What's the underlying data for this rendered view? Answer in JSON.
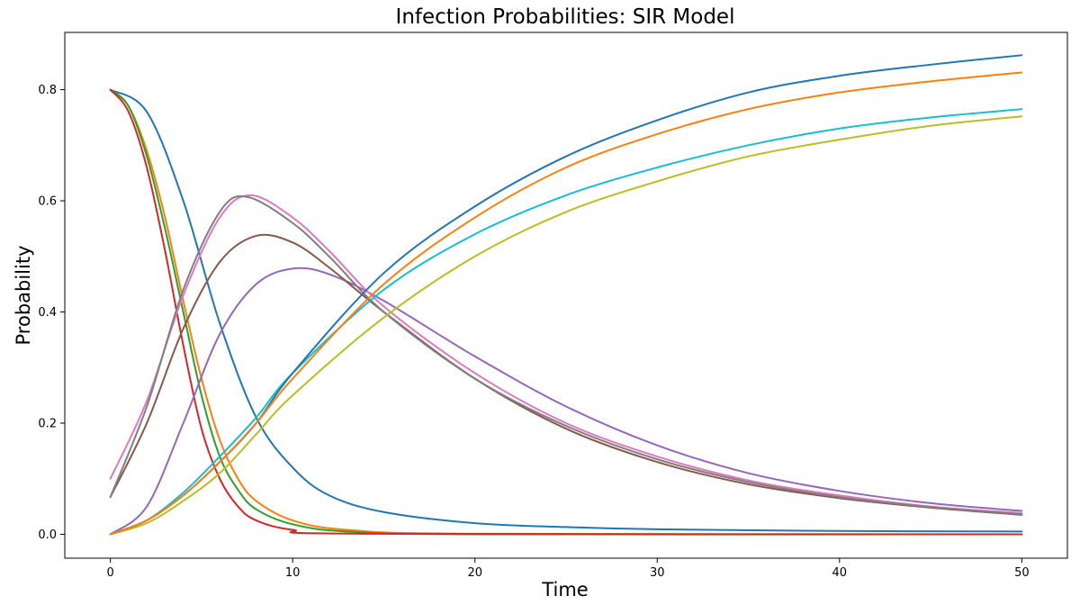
{
  "chart_data": {
    "type": "line",
    "title": "Infection Probabilities: SIR Model",
    "xlabel": "Time",
    "ylabel": "Probability",
    "xlim": [
      -2.5,
      52.5
    ],
    "ylim": [
      -0.043,
      0.903
    ],
    "xticks": [
      "0",
      "10",
      "20",
      "30",
      "40",
      "50"
    ],
    "yticks": [
      "0.0",
      "0.2",
      "0.4",
      "0.6",
      "0.8"
    ],
    "grid": false,
    "legend": "none",
    "series": [
      {
        "color": "#1f77b4",
        "points": [
          [
            0,
            0.8
          ],
          [
            2,
            0.76
          ],
          [
            4,
            0.6
          ],
          [
            6,
            0.38
          ],
          [
            8,
            0.21
          ],
          [
            10,
            0.12
          ],
          [
            12,
            0.07
          ],
          [
            15,
            0.04
          ],
          [
            20,
            0.02
          ],
          [
            25,
            0.013
          ],
          [
            30,
            0.009
          ],
          [
            40,
            0.006
          ],
          [
            50,
            0.005
          ]
        ]
      },
      {
        "color": "#ff7f0e",
        "points": [
          [
            0,
            0.8
          ],
          [
            1,
            0.77
          ],
          [
            2,
            0.69
          ],
          [
            3,
            0.57
          ],
          [
            4,
            0.42
          ],
          [
            5,
            0.28
          ],
          [
            6,
            0.17
          ],
          [
            7,
            0.1
          ],
          [
            8,
            0.06
          ],
          [
            10,
            0.025
          ],
          [
            13,
            0.008
          ],
          [
            20,
            0.001
          ],
          [
            50,
            0.0
          ]
        ]
      },
      {
        "color": "#2ca02c",
        "points": [
          [
            0,
            0.8
          ],
          [
            1,
            0.77
          ],
          [
            2,
            0.68
          ],
          [
            3,
            0.55
          ],
          [
            4,
            0.4
          ],
          [
            5,
            0.25
          ],
          [
            6,
            0.14
          ],
          [
            7,
            0.08
          ],
          [
            8,
            0.045
          ],
          [
            10,
            0.018
          ],
          [
            13,
            0.005
          ],
          [
            20,
            0.0
          ],
          [
            50,
            0.0
          ]
        ]
      },
      {
        "color": "#d62728",
        "points": [
          [
            0,
            0.8
          ],
          [
            1,
            0.76
          ],
          [
            2,
            0.66
          ],
          [
            3,
            0.51
          ],
          [
            4,
            0.34
          ],
          [
            5,
            0.19
          ],
          [
            6,
            0.1
          ],
          [
            7,
            0.05
          ],
          [
            8,
            0.025
          ],
          [
            10,
            0.008
          ],
          [
            14,
            0.001
          ],
          [
            50,
            0.0
          ]
        ]
      },
      {
        "color": "#9467bd",
        "points": [
          [
            0,
            0.0
          ],
          [
            2,
            0.05
          ],
          [
            4,
            0.2
          ],
          [
            6,
            0.36
          ],
          [
            8,
            0.45
          ],
          [
            10,
            0.478
          ],
          [
            12,
            0.468
          ],
          [
            15,
            0.42
          ],
          [
            20,
            0.32
          ],
          [
            25,
            0.23
          ],
          [
            30,
            0.16
          ],
          [
            35,
            0.11
          ],
          [
            40,
            0.078
          ],
          [
            45,
            0.056
          ],
          [
            50,
            0.042
          ]
        ]
      },
      {
        "color": "#8c564b",
        "points": [
          [
            0,
            0.067
          ],
          [
            2,
            0.2
          ],
          [
            4,
            0.37
          ],
          [
            6,
            0.49
          ],
          [
            8,
            0.537
          ],
          [
            10,
            0.525
          ],
          [
            12,
            0.48
          ],
          [
            15,
            0.4
          ],
          [
            20,
            0.28
          ],
          [
            25,
            0.19
          ],
          [
            30,
            0.13
          ],
          [
            35,
            0.09
          ],
          [
            40,
            0.065
          ],
          [
            45,
            0.048
          ],
          [
            50,
            0.035
          ]
        ]
      },
      {
        "color": "#e377c2",
        "points": [
          [
            0,
            0.1
          ],
          [
            2,
            0.24
          ],
          [
            4,
            0.43
          ],
          [
            6,
            0.57
          ],
          [
            7.7,
            0.61
          ],
          [
            10,
            0.57
          ],
          [
            12,
            0.51
          ],
          [
            15,
            0.41
          ],
          [
            20,
            0.29
          ],
          [
            25,
            0.2
          ],
          [
            30,
            0.14
          ],
          [
            35,
            0.097
          ],
          [
            40,
            0.07
          ],
          [
            45,
            0.05
          ],
          [
            50,
            0.038
          ]
        ]
      },
      {
        "color": "#7f7f7f",
        "points": [
          [
            0,
            0.067
          ],
          [
            2,
            0.23
          ],
          [
            4,
            0.44
          ],
          [
            6,
            0.58
          ],
          [
            7.5,
            0.607
          ],
          [
            10,
            0.56
          ],
          [
            12,
            0.5
          ],
          [
            15,
            0.4
          ],
          [
            20,
            0.28
          ],
          [
            25,
            0.195
          ],
          [
            30,
            0.135
          ],
          [
            35,
            0.094
          ],
          [
            40,
            0.067
          ],
          [
            45,
            0.049
          ],
          [
            50,
            0.036
          ]
        ]
      },
      {
        "color": "#bcbd22",
        "points": [
          [
            0,
            0.0
          ],
          [
            2,
            0.02
          ],
          [
            4,
            0.06
          ],
          [
            6,
            0.11
          ],
          [
            8,
            0.18
          ],
          [
            10,
            0.25
          ],
          [
            15,
            0.39
          ],
          [
            20,
            0.5
          ],
          [
            25,
            0.58
          ],
          [
            30,
            0.635
          ],
          [
            35,
            0.68
          ],
          [
            40,
            0.71
          ],
          [
            45,
            0.735
          ],
          [
            50,
            0.752
          ]
        ]
      },
      {
        "color": "#17becf",
        "points": [
          [
            0,
            0.0
          ],
          [
            2,
            0.025
          ],
          [
            4,
            0.075
          ],
          [
            6,
            0.14
          ],
          [
            8,
            0.21
          ],
          [
            10,
            0.29
          ],
          [
            15,
            0.44
          ],
          [
            20,
            0.54
          ],
          [
            25,
            0.61
          ],
          [
            30,
            0.66
          ],
          [
            35,
            0.7
          ],
          [
            40,
            0.73
          ],
          [
            45,
            0.75
          ],
          [
            50,
            0.765
          ]
        ]
      },
      {
        "color": "#1f77b4",
        "points": [
          [
            0,
            0.0
          ],
          [
            2,
            0.025
          ],
          [
            4,
            0.07
          ],
          [
            6,
            0.13
          ],
          [
            8,
            0.2
          ],
          [
            10,
            0.29
          ],
          [
            15,
            0.47
          ],
          [
            20,
            0.59
          ],
          [
            25,
            0.68
          ],
          [
            30,
            0.745
          ],
          [
            35,
            0.795
          ],
          [
            40,
            0.825
          ],
          [
            45,
            0.845
          ],
          [
            50,
            0.862
          ]
        ]
      },
      {
        "color": "#ff7f0e",
        "points": [
          [
            0,
            0.0
          ],
          [
            2,
            0.025
          ],
          [
            4,
            0.07
          ],
          [
            6,
            0.13
          ],
          [
            8,
            0.2
          ],
          [
            10,
            0.28
          ],
          [
            15,
            0.45
          ],
          [
            20,
            0.57
          ],
          [
            25,
            0.66
          ],
          [
            30,
            0.72
          ],
          [
            35,
            0.765
          ],
          [
            40,
            0.795
          ],
          [
            45,
            0.815
          ],
          [
            50,
            0.831
          ]
        ]
      }
    ]
  }
}
